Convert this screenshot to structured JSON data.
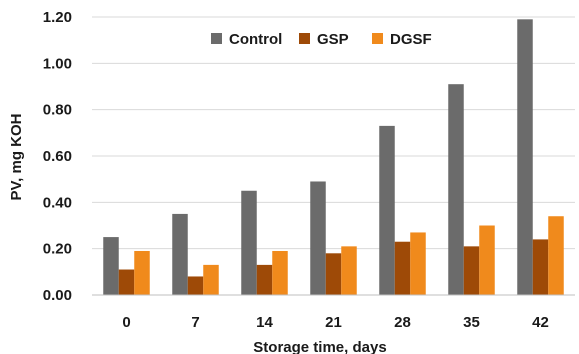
{
  "chart_data": {
    "type": "bar",
    "title": "",
    "xlabel": "Storage time, days",
    "ylabel": "PV, mg KOH",
    "categories": [
      "0",
      "7",
      "14",
      "21",
      "28",
      "35",
      "42"
    ],
    "yticks": [
      "0.00",
      "0.20",
      "0.40",
      "0.60",
      "0.80",
      "1.00",
      "1.20"
    ],
    "ylim": [
      0,
      1.2
    ],
    "grid": true,
    "legend_position": "top",
    "series": [
      {
        "name": "Control",
        "color": "#6b6b6b",
        "values": [
          0.25,
          0.35,
          0.45,
          0.49,
          0.73,
          0.91,
          1.19
        ]
      },
      {
        "name": "GSP",
        "color": "#9e4a07",
        "values": [
          0.11,
          0.08,
          0.13,
          0.18,
          0.23,
          0.21,
          0.24
        ]
      },
      {
        "name": "DGSF",
        "color": "#f08a1c",
        "values": [
          0.19,
          0.13,
          0.19,
          0.21,
          0.27,
          0.3,
          0.34
        ]
      }
    ]
  }
}
